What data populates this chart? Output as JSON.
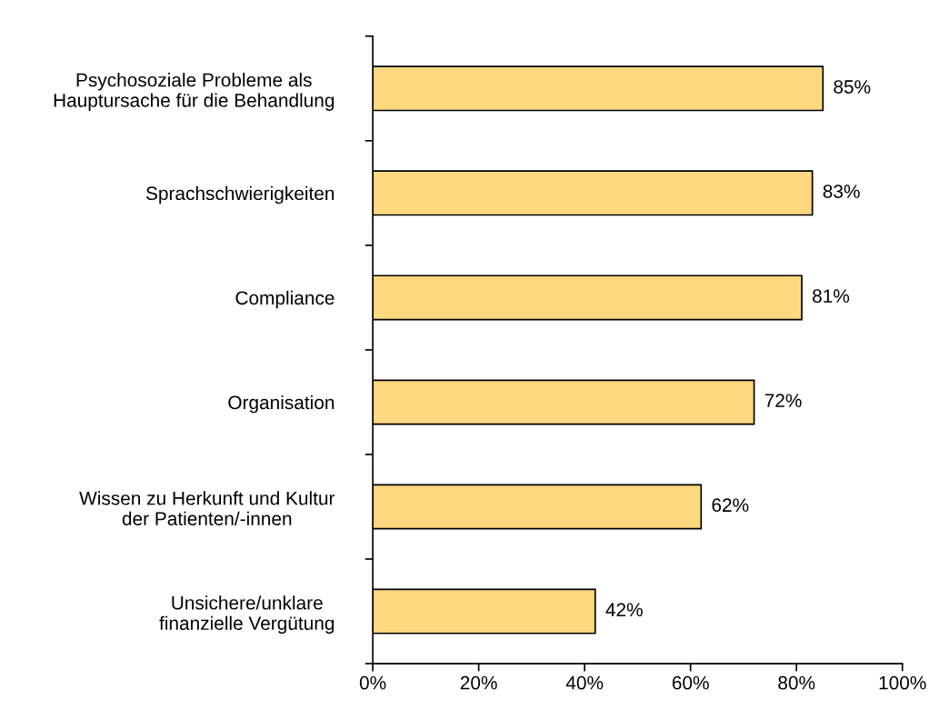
{
  "chart_data": {
    "type": "bar",
    "orientation": "horizontal",
    "categories": [
      "Psychosoziale Probleme als\nHauptursache für die Behandlung",
      "Sprachschwierigkeiten",
      "Compliance",
      "Organisation",
      "Wissen zu Herkunft und Kultur\nder Patienten/-innen",
      "Unsichere/unklare\nfinanzielle Vergütung"
    ],
    "values": [
      85,
      83,
      81,
      72,
      62,
      42
    ],
    "value_labels": [
      "85%",
      "83%",
      "81%",
      "72%",
      "62%",
      "42%"
    ],
    "color": "#fdd87f",
    "xlim": [
      0,
      100
    ],
    "xticks": [
      {
        "value": 0,
        "label": "0%"
      },
      {
        "value": 20,
        "label": "20%"
      },
      {
        "value": 40,
        "label": "40%"
      },
      {
        "value": 60,
        "label": "60%"
      },
      {
        "value": 80,
        "label": "80%"
      },
      {
        "value": 100,
        "label": "100%"
      }
    ],
    "grid": false
  }
}
